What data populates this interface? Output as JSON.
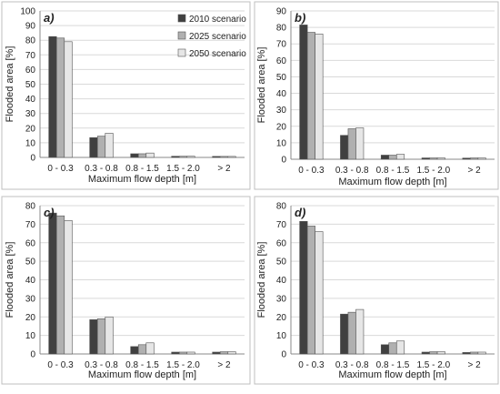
{
  "legend_labels": [
    "2010 scenario",
    "2025 scenario",
    "2050 scenario"
  ],
  "colors": {
    "series": [
      "#404040",
      "#b0b0b0",
      "#e6e6e6"
    ],
    "bar_stroke": "#555555",
    "axis": "#888888",
    "grid": "#d9d9d9"
  },
  "chart_data": [
    {
      "type": "bar",
      "panel_label": "a)",
      "ylabel": "Flooded area [%]",
      "xlabel": "Maximum flow depth [m]",
      "ylim": [
        0,
        100
      ],
      "yticks": [
        0,
        10,
        20,
        30,
        40,
        50,
        60,
        70,
        80,
        90,
        100
      ],
      "grid": true,
      "legend": "top-right",
      "categories": [
        "0 - 0.3",
        "0.3 - 0.8",
        "0.8 - 1.5",
        "1.5 - 2.0",
        "> 2"
      ],
      "series": [
        {
          "name": "2010 scenario",
          "values": [
            82.5,
            13.5,
            2.5,
            0.8,
            0.7
          ]
        },
        {
          "name": "2025 scenario",
          "values": [
            81.5,
            14.5,
            2.5,
            0.8,
            0.7
          ]
        },
        {
          "name": "2050 scenario",
          "values": [
            79,
            16.5,
            3,
            0.8,
            0.7
          ]
        }
      ]
    },
    {
      "type": "bar",
      "panel_label": "b)",
      "ylabel": "Flooded area [%]",
      "xlabel": "Maximum flow depth [m]",
      "ylim": [
        0,
        90
      ],
      "yticks": [
        0,
        10,
        20,
        30,
        40,
        50,
        60,
        70,
        80,
        90
      ],
      "grid": true,
      "categories": [
        "0 - 0.3",
        "0.3 - 0.8",
        "0.8 - 1.5",
        "1.5 - 2.0",
        "> 2"
      ],
      "series": [
        {
          "name": "2010 scenario",
          "values": [
            81.5,
            14.5,
            2.5,
            0.8,
            0.7
          ]
        },
        {
          "name": "2025 scenario",
          "values": [
            77,
            18.5,
            2.5,
            0.8,
            0.8
          ]
        },
        {
          "name": "2050 scenario",
          "values": [
            76,
            19,
            3,
            0.8,
            0.8
          ]
        }
      ]
    },
    {
      "type": "bar",
      "panel_label": "c)",
      "ylabel": "Flooded area [%]",
      "xlabel": "Maximum flow depth [m]",
      "ylim": [
        0,
        80
      ],
      "yticks": [
        0,
        10,
        20,
        30,
        40,
        50,
        60,
        70,
        80
      ],
      "grid": true,
      "categories": [
        "0 - 0.3",
        "0.3 - 0.8",
        "0.8 - 1.5",
        "1.5 - 2.0",
        "> 2"
      ],
      "series": [
        {
          "name": "2010 scenario",
          "values": [
            76,
            18.5,
            4,
            1,
            1
          ]
        },
        {
          "name": "2025 scenario",
          "values": [
            74.5,
            19,
            5,
            1,
            1.2
          ]
        },
        {
          "name": "2050 scenario",
          "values": [
            72,
            20,
            6,
            1,
            1.2
          ]
        }
      ]
    },
    {
      "type": "bar",
      "panel_label": "d)",
      "ylabel": "Flooded area [%]",
      "xlabel": "Maximum flow depth [m]",
      "ylim": [
        0,
        80
      ],
      "yticks": [
        0,
        10,
        20,
        30,
        40,
        50,
        60,
        70,
        80
      ],
      "grid": true,
      "categories": [
        "0 - 0.3",
        "0.3 - 0.8",
        "0.8 - 1.5",
        "1.5 - 2.0",
        "> 2"
      ],
      "series": [
        {
          "name": "2010 scenario",
          "values": [
            71.5,
            21.5,
            5,
            1,
            0.8
          ]
        },
        {
          "name": "2025 scenario",
          "values": [
            69,
            22.5,
            6,
            1.2,
            1
          ]
        },
        {
          "name": "2050 scenario",
          "values": [
            66,
            24,
            7,
            1.2,
            1
          ]
        }
      ]
    }
  ]
}
